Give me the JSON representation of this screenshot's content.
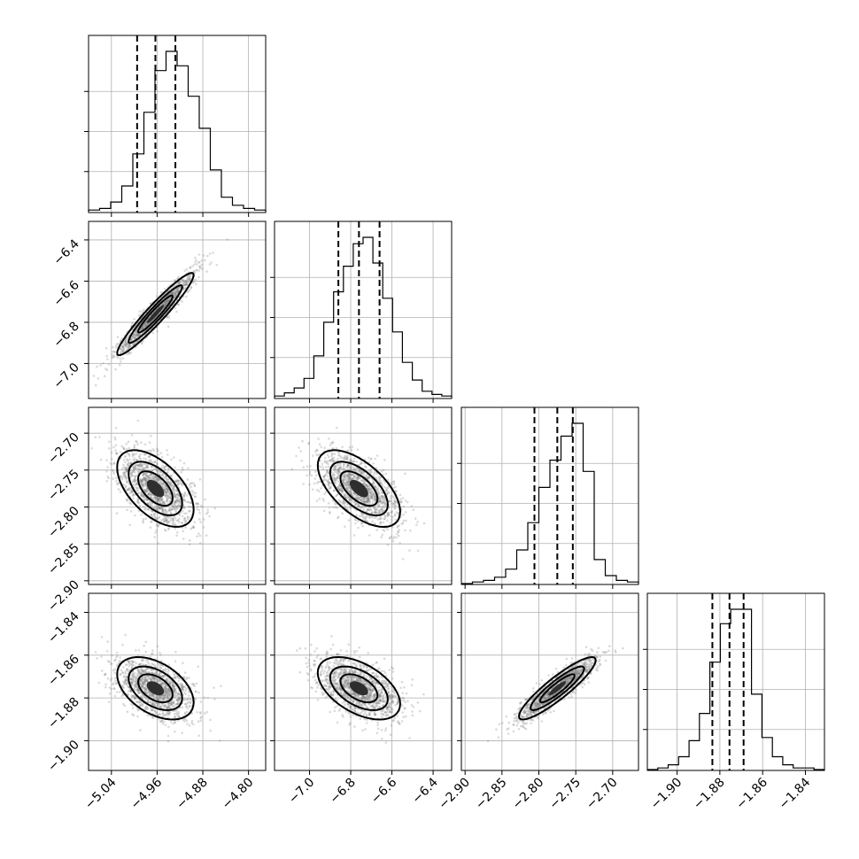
{
  "chart_data": {
    "type": "corner",
    "parameters": [
      {
        "range": [
          -5.08,
          -4.77
        ],
        "ticks": [
          -5.04,
          -4.96,
          -4.88,
          -4.8
        ],
        "tick_labels": [
          "−5.04",
          "−4.96",
          "−4.88",
          "−4.80"
        ],
        "quantiles": [
          -4.995,
          -4.963,
          -4.928
        ],
        "hist_counts": [
          1,
          2,
          6,
          16,
          36,
          62,
          88,
          100,
          91,
          72,
          52,
          26,
          9,
          4,
          2,
          1
        ]
      },
      {
        "range": [
          -7.17,
          -6.31
        ],
        "ticks": [
          -7.0,
          -6.8,
          -6.6,
          -6.4
        ],
        "tick_labels": [
          "−7.0",
          "−6.8",
          "−6.6",
          "−6.4"
        ],
        "quantiles": [
          -6.86,
          -6.76,
          -6.66
        ],
        "hist_counts": [
          1,
          3,
          6,
          12,
          26,
          47,
          66,
          82,
          96,
          100,
          84,
          62,
          41,
          22,
          11,
          4,
          2,
          1
        ]
      },
      {
        "range": [
          -2.905,
          -2.665
        ],
        "ticks": [
          -2.9,
          -2.85,
          -2.8,
          -2.75,
          -2.7
        ],
        "tick_labels": [
          "−2.90",
          "−2.85",
          "−2.80",
          "−2.75",
          "−2.70"
        ],
        "quantiles": [
          -2.806,
          -2.775,
          -2.754
        ],
        "hist_counts": [
          0,
          1,
          2,
          4,
          9,
          21,
          38,
          60,
          77,
          92,
          100,
          70,
          15,
          5,
          2,
          1
        ]
      },
      {
        "range": [
          -1.9139,
          -1.8311
        ],
        "ticks": [
          -1.9,
          -1.88,
          -1.86,
          -1.84
        ],
        "tick_labels": [
          "−1.90",
          "−1.88",
          "−1.86",
          "−1.84"
        ],
        "quantiles": [
          -1.8835,
          -1.8755,
          -1.8689
        ],
        "hist_counts": [
          0,
          1,
          3,
          8,
          18,
          35,
          67,
          91,
          100,
          100,
          47,
          20,
          8,
          3,
          1,
          1,
          0
        ]
      }
    ],
    "correlations": {
      "1_0": 0.95,
      "2_0": -0.55,
      "2_1": -0.6,
      "3_0": -0.45,
      "3_1": -0.5,
      "3_2": 0.9
    },
    "y_axis_rows": [
      1,
      2,
      3
    ],
    "x_axis_columns": [
      0,
      1,
      2,
      3
    ],
    "grid": true,
    "colors": {
      "scatter": "#7f7f7f",
      "line": "#000000",
      "grid": "#b0b0b0"
    }
  }
}
